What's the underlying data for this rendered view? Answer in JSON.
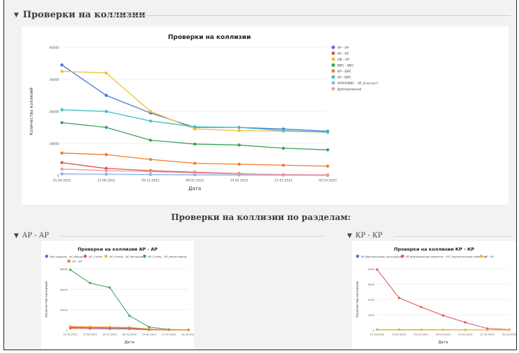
{
  "section": {
    "title": "Проверки на коллизии",
    "sub_title": "Проверки на коллизии по разделам:"
  },
  "subsections": {
    "left": "АР - АР",
    "right": "КР - КР"
  },
  "chart_data": [
    {
      "type": "line",
      "title": "Проверки на коллизии",
      "xlabel": "Дата",
      "ylabel": "Количество коллизий",
      "x": [
        "01.09.2022",
        "15.09.2022",
        "09.12.2022",
        "08.02.2023",
        "14.02.2023",
        "27.02.2023",
        "02.03.2023"
      ],
      "ylim": [
        0,
        40000
      ],
      "yticks": [
        0,
        10000,
        20000,
        30000,
        40000
      ],
      "legend_position": "right",
      "series": [
        {
          "name": "АР - АР",
          "color": "#4a76d4",
          "values": [
            34500,
            25000,
            19500,
            15000,
            15000,
            14500,
            13800
          ]
        },
        {
          "name": "КР - КР",
          "color": "#e04f4f",
          "values": [
            4000,
            2200,
            1500,
            1000,
            600,
            150,
            50
          ]
        },
        {
          "name": "ОВ - АР",
          "color": "#f0c02e",
          "values": [
            32500,
            32000,
            20000,
            14500,
            14000,
            13800,
            13500
          ]
        },
        {
          "name": "ВИС - ВИС",
          "color": "#3aa35a",
          "values": [
            16500,
            15000,
            11000,
            9800,
            9500,
            8500,
            8000
          ]
        },
        {
          "name": "КР - ВИС",
          "color": "#ee7d2a",
          "values": [
            7000,
            6500,
            5000,
            3800,
            3500,
            3200,
            2900
          ]
        },
        {
          "name": "АР - ВИС",
          "color": "#3fc0c8",
          "values": [
            20500,
            20000,
            17000,
            15200,
            15000,
            14000,
            13500
          ]
        },
        {
          "name": "АР/КР/ВИС - АР_Благоуст",
          "color": "#8ab0e8",
          "values": [
            500,
            400,
            300,
            200,
            150,
            100,
            80
          ]
        },
        {
          "name": "Дублирования",
          "color": "#f09898",
          "values": [
            2000,
            1500,
            1200,
            800,
            500,
            300,
            200
          ]
        }
      ]
    },
    {
      "type": "line",
      "title": "Проверки на коллизии АР - АР",
      "xlabel": "Дата",
      "ylabel": "Количество коллизий",
      "x": [
        "01.09.2022",
        "15.09.2022",
        "30.12.2022",
        "09.02.2023",
        "14.02.2023",
        "27.02.2023",
        "02.03.2023"
      ],
      "ylim": [
        0,
        30000
      ],
      "yticks": [
        0,
        10000,
        20000,
        30000
      ],
      "legend_position": "top",
      "series": [
        {
          "name": "Все_модели - АР_Фасад",
          "color": "#4a76d4",
          "values": [
            1200,
            1100,
            1000,
            900,
            200,
            50,
            30
          ]
        },
        {
          "name": "АР_Стены",
          "color": "#e04f4f",
          "values": [
            800,
            700,
            600,
            500,
            100,
            30,
            20
          ]
        },
        {
          "name": "АР_Стены - АР_Витражи",
          "color": "#f0c02e",
          "values": [
            1800,
            1600,
            1500,
            1300,
            400,
            60,
            40
          ]
        },
        {
          "name": "АР_Стены - АР_Увольтовани",
          "color": "#3aa35a",
          "values": [
            29500,
            23000,
            20800,
            7000,
            1500,
            300,
            100
          ]
        },
        {
          "name": "КР - КР",
          "color": "#ee7d2a",
          "values": [
            1500,
            1300,
            1200,
            1100,
            500,
            80,
            50
          ]
        }
      ]
    },
    {
      "type": "line",
      "title": "Проверки на коллизии КР - КР",
      "xlabel": "Дата",
      "ylabel": "Количество коллизий",
      "x": [
        "01.09.2022",
        "15.09.2022",
        "09.12.2022",
        "09.02.2023",
        "14.02.2023",
        "27.02.2023",
        "02.03.2023"
      ],
      "ylim": [
        0,
        4000
      ],
      "yticks": [
        0,
        1000,
        2000,
        3000,
        4000
      ],
      "legend_position": "top",
      "series": [
        {
          "name": "КР_Вертикальные_конструкции",
          "color": "#4a76d4",
          "values": [
            30,
            25,
            20,
            15,
            10,
            5,
            5
          ]
        },
        {
          "name": "КР_Вертикальные элементы - КР_Горизонтальные элементы",
          "color": "#e04f4f",
          "values": [
            3950,
            2100,
            1500,
            950,
            500,
            100,
            30
          ]
        },
        {
          "name": "КР - АР",
          "color": "#f0c02e",
          "values": [
            10,
            8,
            6,
            5,
            4,
            3,
            2
          ]
        }
      ]
    }
  ]
}
